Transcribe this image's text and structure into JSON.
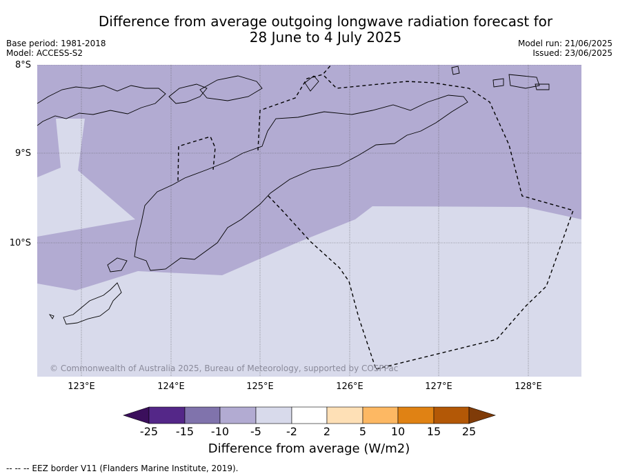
{
  "title_line1": "Difference from average outgoing longwave radiation forecast for",
  "title_line2": "28 June to 4 July 2025",
  "meta_left": {
    "base_period": "Base period: 1981-2018",
    "model": "Model: ACCESS-S2"
  },
  "meta_right": {
    "model_run": "Model run: 21/06/2025",
    "issued": "Issued: 23/06/2025"
  },
  "lat_labels": [
    "8°S",
    "9°S",
    "10°S"
  ],
  "lon_labels": [
    "123°E",
    "124°E",
    "125°E",
    "126°E",
    "127°E",
    "128°E"
  ],
  "copyright": "© Commonwealth of Australia 2025, Bureau of Meteorology, supported by COSPPac",
  "colorbar": {
    "title": "Difference from average (W/m2)",
    "tick_labels": [
      "-25",
      "-15",
      "-10",
      "-5",
      "-2",
      "2",
      "5",
      "10",
      "15",
      "25"
    ],
    "colors": [
      "#3b0f5c",
      "#542788",
      "#8073ac",
      "#b2abd2",
      "#d8daeb",
      "#ffffff",
      "#fee0b6",
      "#fdb863",
      "#e08214",
      "#b35806",
      "#7f3b08"
    ]
  },
  "footnote": "--  --  -- EEZ border V11 (Flanders Marine Institute, 2019).",
  "chart_data": {
    "type": "heatmap",
    "title": "Difference from average outgoing longwave radiation forecast for 28 June to 4 July 2025",
    "xlabel": "",
    "ylabel": "",
    "xlim": [
      122.5,
      128.6
    ],
    "ylim": [
      -11.5,
      -8.0
    ],
    "x_ticks": [
      123,
      124,
      125,
      126,
      127,
      128
    ],
    "y_ticks": [
      -8,
      -9,
      -10
    ],
    "units": "W/m2",
    "levels": [
      -25,
      -15,
      -10,
      -5,
      -2,
      2,
      5,
      10,
      15,
      25
    ],
    "regions": [
      {
        "range": "-10 to -5",
        "area": "northern part of map (Timor, Sumba, Flores region)"
      },
      {
        "range": "-5 to -2",
        "area": "southern part of map (Timor Sea) and western strip near Sumba"
      }
    ],
    "grid": true
  }
}
